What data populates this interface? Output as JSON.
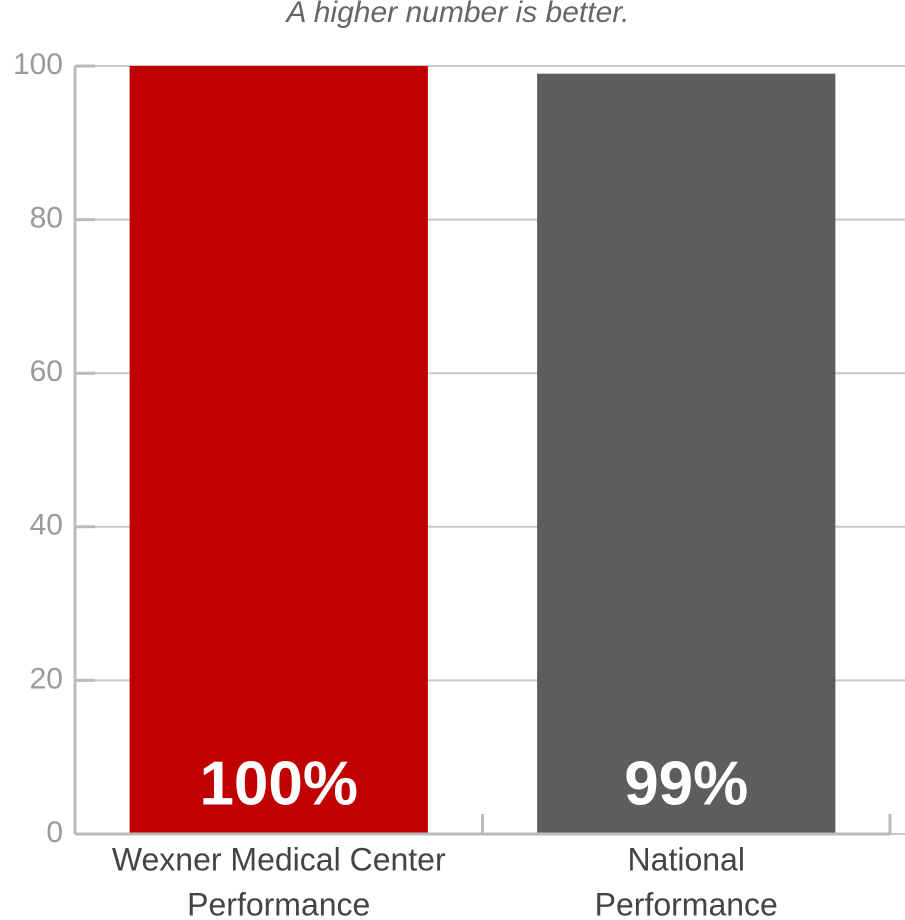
{
  "chart_data": {
    "type": "bar",
    "subtitle": "A higher number is better.",
    "categories": [
      [
        "Wexner Medical Center",
        "Performance"
      ],
      [
        "National",
        "Performance"
      ]
    ],
    "values": [
      100,
      99
    ],
    "value_labels": [
      "100%",
      "99%"
    ],
    "colors": [
      "#c00000",
      "#5d5d5d"
    ],
    "ylim": [
      0,
      100
    ],
    "yticks": [
      0,
      20,
      40,
      60,
      80,
      100
    ],
    "grid": true
  }
}
